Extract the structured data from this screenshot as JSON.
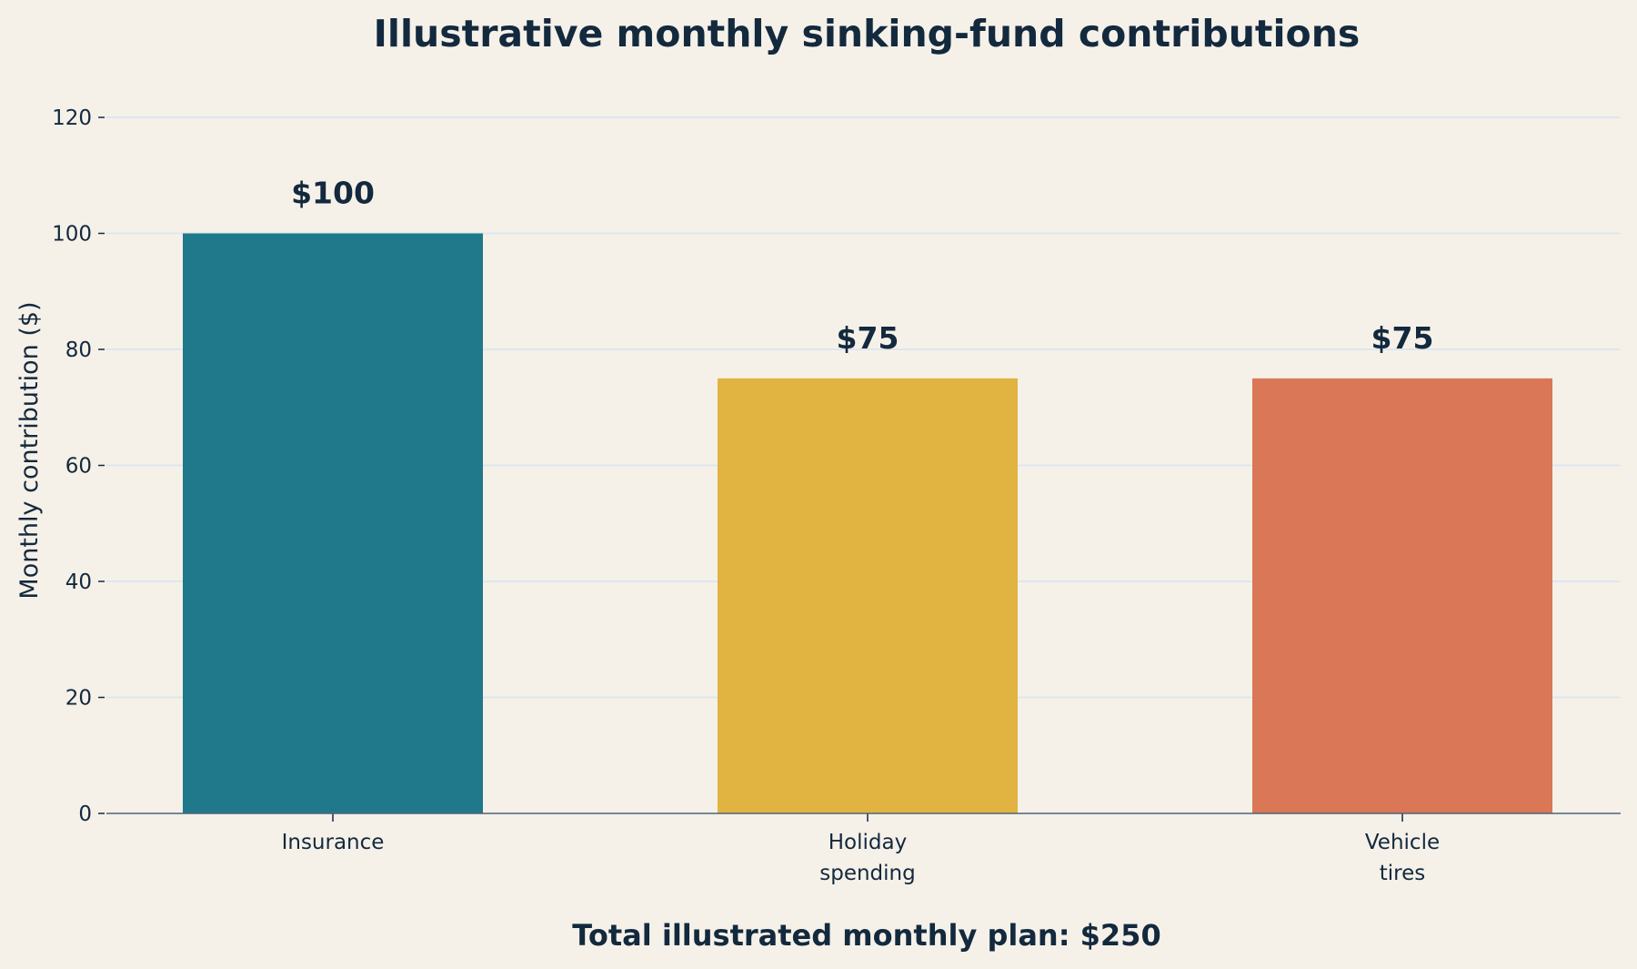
{
  "chart_data": {
    "type": "bar",
    "title": "Illustrative monthly sinking-fund contributions",
    "xlabel": "",
    "ylabel": "Monthly contribution ($)",
    "categories": [
      [
        "Insurance"
      ],
      [
        "Holiday",
        "spending"
      ],
      [
        "Vehicle",
        "tires"
      ]
    ],
    "values": [
      100,
      75,
      75
    ],
    "value_labels": [
      "$100",
      "$75",
      "$75"
    ],
    "colors": [
      "#20798b",
      "#e1b341",
      "#da7756"
    ],
    "ylim": [
      0,
      120
    ],
    "yticks": [
      0,
      20,
      40,
      60,
      80,
      100,
      120
    ],
    "grid": "horizontal",
    "legend": "none",
    "footnote": "Total illustrated monthly plan: $250"
  }
}
